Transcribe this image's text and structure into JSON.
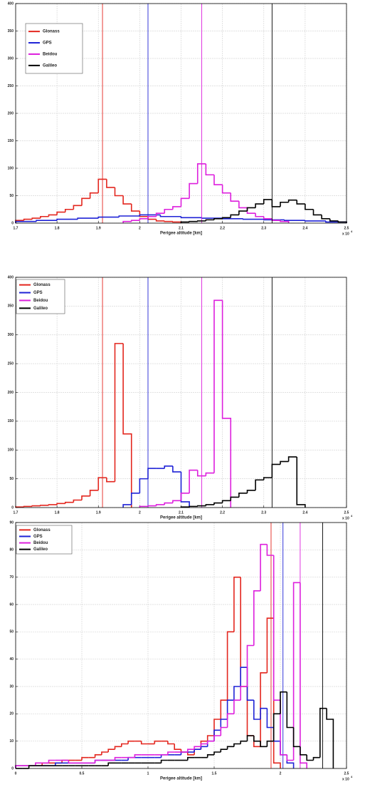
{
  "chart_data": [
    {
      "type": "histogram",
      "xlabel": "Perigee altitude [km]",
      "x_scale_label": "x 10",
      "x_scale_exponent": 4,
      "xlim": [
        1.7,
        2.5
      ],
      "xticks": [
        1.7,
        1.8,
        1.9,
        2,
        2.1,
        2.2,
        2.3,
        2.4,
        2.5
      ],
      "ylim": [
        0,
        400
      ],
      "yticks": [
        0,
        50,
        100,
        150,
        200,
        250,
        300,
        350,
        400
      ],
      "grid": true,
      "legend": "upper left",
      "series": [
        {
          "name": "Glonass",
          "color": "#e3261e",
          "ref_x": 1.91,
          "bins": [
            1.7,
            1.72,
            1.74,
            1.76,
            1.78,
            1.8,
            1.82,
            1.84,
            1.86,
            1.88,
            1.9,
            1.92,
            1.94,
            1.96,
            1.98,
            2.0,
            2.02,
            2.04,
            2.06,
            2.08,
            2.1
          ],
          "values": [
            5,
            7,
            9,
            12,
            15,
            20,
            25,
            32,
            45,
            55,
            80,
            65,
            50,
            35,
            22,
            12,
            7,
            4,
            3,
            2
          ]
        },
        {
          "name": "GPS",
          "color": "#1e22d6",
          "ref_x": 2.02,
          "bins": [
            1.7,
            1.75,
            1.8,
            1.85,
            1.9,
            1.95,
            2.0,
            2.05,
            2.1,
            2.15,
            2.2,
            2.25,
            2.3,
            2.35,
            2.4,
            2.45,
            2.5
          ],
          "values": [
            3,
            5,
            7,
            9,
            11,
            13,
            15,
            12,
            10,
            9,
            8,
            7,
            6,
            5,
            4,
            2
          ]
        },
        {
          "name": "Beidou",
          "color": "#dd1fdd",
          "ref_x": 2.15,
          "bins": [
            1.96,
            1.98,
            2.0,
            2.02,
            2.04,
            2.06,
            2.08,
            2.1,
            2.12,
            2.14,
            2.16,
            2.18,
            2.2,
            2.22,
            2.24,
            2.26,
            2.28,
            2.3,
            2.32,
            2.34,
            2.36
          ],
          "values": [
            3,
            5,
            8,
            12,
            18,
            25,
            30,
            45,
            72,
            108,
            88,
            70,
            55,
            40,
            28,
            18,
            12,
            8,
            5,
            3
          ]
        },
        {
          "name": "Galileo",
          "color": "#000000",
          "ref_x": 2.32,
          "bins": [
            2.1,
            2.12,
            2.14,
            2.16,
            2.18,
            2.2,
            2.22,
            2.24,
            2.26,
            2.28,
            2.3,
            2.32,
            2.34,
            2.36,
            2.38,
            2.4,
            2.42,
            2.44,
            2.46,
            2.48,
            2.5
          ],
          "values": [
            2,
            3,
            4,
            6,
            8,
            10,
            15,
            22,
            28,
            35,
            43,
            30,
            38,
            42,
            35,
            25,
            15,
            8,
            4,
            2
          ]
        }
      ]
    },
    {
      "type": "histogram",
      "xlabel": "Perigee altitude [km]",
      "x_scale_label": "x 10",
      "x_scale_exponent": 4,
      "xlim": [
        1.7,
        2.5
      ],
      "xticks": [
        1.7,
        1.8,
        1.9,
        2,
        2.1,
        2.2,
        2.3,
        2.4,
        2.5
      ],
      "ylim": [
        0,
        400
      ],
      "yticks": [
        0,
        50,
        100,
        150,
        200,
        250,
        300,
        350,
        400
      ],
      "grid": true,
      "legend": "upper left",
      "series": [
        {
          "name": "Glonass",
          "color": "#e3261e",
          "ref_x": 1.91,
          "bins": [
            1.7,
            1.72,
            1.74,
            1.76,
            1.78,
            1.8,
            1.82,
            1.84,
            1.86,
            1.88,
            1.9,
            1.92,
            1.94,
            1.96,
            1.98
          ],
          "values": [
            1,
            2,
            3,
            4,
            5,
            7,
            9,
            13,
            20,
            30,
            52,
            45,
            285,
            128
          ]
        },
        {
          "name": "GPS",
          "color": "#1e22d6",
          "ref_x": 2.02,
          "bins": [
            1.96,
            1.98,
            2.0,
            2.02,
            2.04,
            2.06,
            2.08,
            2.1,
            2.12
          ],
          "values": [
            5,
            25,
            50,
            68,
            68,
            72,
            62,
            10
          ]
        },
        {
          "name": "Beidou",
          "color": "#dd1fdd",
          "ref_x": 2.15,
          "bins": [
            2.0,
            2.02,
            2.04,
            2.06,
            2.08,
            2.1,
            2.12,
            2.14,
            2.16,
            2.18,
            2.2,
            2.22
          ],
          "values": [
            2,
            3,
            5,
            8,
            12,
            25,
            65,
            55,
            60,
            360,
            155
          ]
        },
        {
          "name": "Galileo",
          "color": "#000000",
          "ref_x": 2.32,
          "bins": [
            2.1,
            2.12,
            2.14,
            2.16,
            2.18,
            2.2,
            2.22,
            2.24,
            2.26,
            2.28,
            2.3,
            2.32,
            2.34,
            2.36,
            2.38,
            2.4
          ],
          "values": [
            1,
            2,
            3,
            5,
            8,
            12,
            18,
            25,
            30,
            48,
            52,
            75,
            80,
            88,
            5
          ]
        }
      ]
    },
    {
      "type": "histogram",
      "xlabel": "Perigee altitude [km]",
      "x_scale_label": "x 10",
      "x_scale_exponent": 4,
      "xlim": [
        0,
        2.5
      ],
      "xticks": [
        0,
        0.5,
        1,
        1.5,
        2,
        2.5
      ],
      "ylim": [
        0,
        90
      ],
      "yticks": [
        0,
        10,
        20,
        30,
        40,
        50,
        60,
        70,
        80,
        90
      ],
      "grid": true,
      "legend": "upper left",
      "series": [
        {
          "name": "Glonass",
          "color": "#e3261e",
          "ref_x": 1.93,
          "bins": [
            0,
            0.05,
            0.1,
            0.15,
            0.2,
            0.25,
            0.3,
            0.35,
            0.4,
            0.45,
            0.5,
            0.55,
            0.6,
            0.65,
            0.7,
            0.75,
            0.8,
            0.85,
            0.9,
            0.95,
            1.0,
            1.05,
            1.1,
            1.15,
            1.2,
            1.25,
            1.3,
            1.35,
            1.4,
            1.45,
            1.5,
            1.55,
            1.6,
            1.65,
            1.7,
            1.75,
            1.8,
            1.85,
            1.9,
            1.95,
            2.0
          ],
          "values": [
            1,
            1,
            1,
            1,
            2,
            2,
            2,
            3,
            3,
            3,
            4,
            4,
            5,
            6,
            7,
            8,
            9,
            10,
            10,
            9,
            9,
            10,
            10,
            9,
            7,
            6,
            5,
            7,
            10,
            12,
            18,
            25,
            50,
            70,
            30,
            12,
            8,
            35,
            55,
            2
          ]
        },
        {
          "name": "GPS",
          "color": "#1e22d6",
          "ref_x": 2.02,
          "bins": [
            0,
            0.05,
            0.1,
            0.15,
            0.2,
            0.25,
            0.3,
            0.35,
            0.4,
            0.45,
            0.5,
            0.55,
            0.6,
            0.65,
            0.7,
            0.75,
            0.8,
            0.85,
            0.9,
            0.95,
            1.0,
            1.05,
            1.1,
            1.15,
            1.2,
            1.25,
            1.3,
            1.35,
            1.4,
            1.45,
            1.5,
            1.55,
            1.6,
            1.65,
            1.7,
            1.75,
            1.8,
            1.85,
            1.9,
            1.95,
            2.0,
            2.05,
            2.1
          ],
          "values": [
            1,
            1,
            1,
            1,
            1,
            1,
            2,
            2,
            2,
            2,
            2,
            2,
            3,
            3,
            3,
            3,
            3,
            4,
            4,
            4,
            4,
            4,
            5,
            5,
            5,
            6,
            6,
            7,
            8,
            10,
            14,
            18,
            25,
            30,
            37,
            25,
            18,
            22,
            15,
            10,
            5,
            2
          ]
        },
        {
          "name": "Beidou",
          "color": "#dd1fdd",
          "ref_x": 2.15,
          "bins": [
            0,
            0.05,
            0.1,
            0.15,
            0.2,
            0.25,
            0.3,
            0.35,
            0.4,
            0.45,
            0.5,
            0.55,
            0.6,
            0.65,
            0.7,
            0.75,
            0.8,
            0.85,
            0.9,
            0.95,
            1.0,
            1.05,
            1.1,
            1.15,
            1.2,
            1.25,
            1.3,
            1.35,
            1.4,
            1.45,
            1.5,
            1.55,
            1.6,
            1.65,
            1.7,
            1.75,
            1.8,
            1.85,
            1.9,
            1.95,
            2.0,
            2.05,
            2.1,
            2.15,
            2.2
          ],
          "values": [
            1,
            1,
            1,
            2,
            2,
            3,
            3,
            3,
            2,
            2,
            2,
            2,
            3,
            3,
            3,
            4,
            4,
            4,
            5,
            5,
            5,
            5,
            5,
            6,
            6,
            6,
            7,
            8,
            9,
            10,
            12,
            15,
            20,
            25,
            30,
            45,
            65,
            82,
            78,
            25,
            5,
            3,
            68,
            2
          ]
        },
        {
          "name": "Galileo",
          "color": "#000000",
          "ref_x": 2.32,
          "bins": [
            0,
            0.05,
            0.1,
            0.15,
            0.2,
            0.25,
            0.3,
            0.35,
            0.4,
            0.45,
            0.5,
            0.55,
            0.6,
            0.65,
            0.7,
            0.75,
            0.8,
            0.85,
            0.9,
            0.95,
            1.0,
            1.05,
            1.1,
            1.15,
            1.2,
            1.25,
            1.3,
            1.35,
            1.4,
            1.45,
            1.5,
            1.55,
            1.6,
            1.65,
            1.7,
            1.75,
            1.8,
            1.85,
            1.9,
            1.95,
            2.0,
            2.05,
            2.1,
            2.15,
            2.2,
            2.25,
            2.3,
            2.35,
            2.4
          ],
          "values": [
            0,
            0,
            1,
            1,
            1,
            1,
            1,
            1,
            1,
            1,
            1,
            1,
            1,
            1,
            2,
            2,
            2,
            2,
            2,
            2,
            2,
            2,
            3,
            3,
            3,
            3,
            4,
            4,
            4,
            5,
            6,
            7,
            8,
            9,
            10,
            12,
            10,
            8,
            10,
            20,
            28,
            15,
            8,
            5,
            3,
            4,
            22,
            18
          ]
        }
      ]
    }
  ]
}
